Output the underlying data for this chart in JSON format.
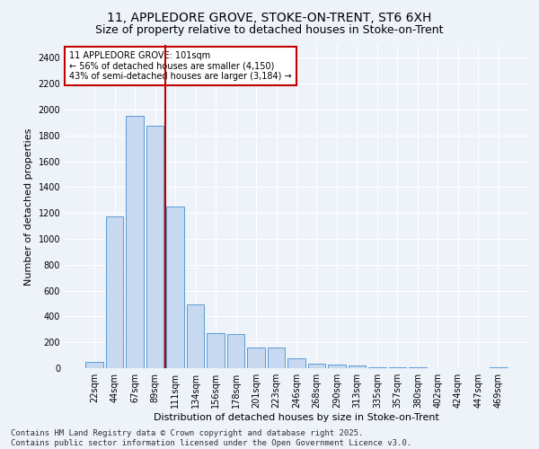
{
  "title_line1": "11, APPLEDORE GROVE, STOKE-ON-TRENT, ST6 6XH",
  "title_line2": "Size of property relative to detached houses in Stoke-on-Trent",
  "xlabel": "Distribution of detached houses by size in Stoke-on-Trent",
  "ylabel": "Number of detached properties",
  "bar_labels": [
    "22sqm",
    "44sqm",
    "67sqm",
    "89sqm",
    "111sqm",
    "134sqm",
    "156sqm",
    "178sqm",
    "201sqm",
    "223sqm",
    "246sqm",
    "268sqm",
    "290sqm",
    "313sqm",
    "335sqm",
    "357sqm",
    "380sqm",
    "402sqm",
    "424sqm",
    "447sqm",
    "469sqm"
  ],
  "bar_values": [
    50,
    1175,
    1950,
    1875,
    1250,
    490,
    270,
    265,
    160,
    160,
    75,
    32,
    28,
    18,
    10,
    7,
    5,
    3,
    2,
    1,
    5
  ],
  "bar_color": "#c6d9f0",
  "bar_edge_color": "#5b9bd5",
  "vline_x": 3.5,
  "vline_color": "#c00000",
  "annotation_title": "11 APPLEDORE GROVE: 101sqm",
  "annotation_line2": "← 56% of detached houses are smaller (4,150)",
  "annotation_line3": "43% of semi-detached houses are larger (3,184) →",
  "annotation_box_color": "#c00000",
  "ylim": [
    0,
    2500
  ],
  "yticks": [
    0,
    200,
    400,
    600,
    800,
    1000,
    1200,
    1400,
    1600,
    1800,
    2000,
    2200,
    2400
  ],
  "footer_line1": "Contains HM Land Registry data © Crown copyright and database right 2025.",
  "footer_line2": "Contains public sector information licensed under the Open Government Licence v3.0.",
  "bg_color": "#eef2f9",
  "grid_color": "#ffffff",
  "title_fontsize": 10,
  "subtitle_fontsize": 9,
  "axis_label_fontsize": 8,
  "tick_fontsize": 7,
  "footer_fontsize": 6.5,
  "annotation_fontsize": 7
}
